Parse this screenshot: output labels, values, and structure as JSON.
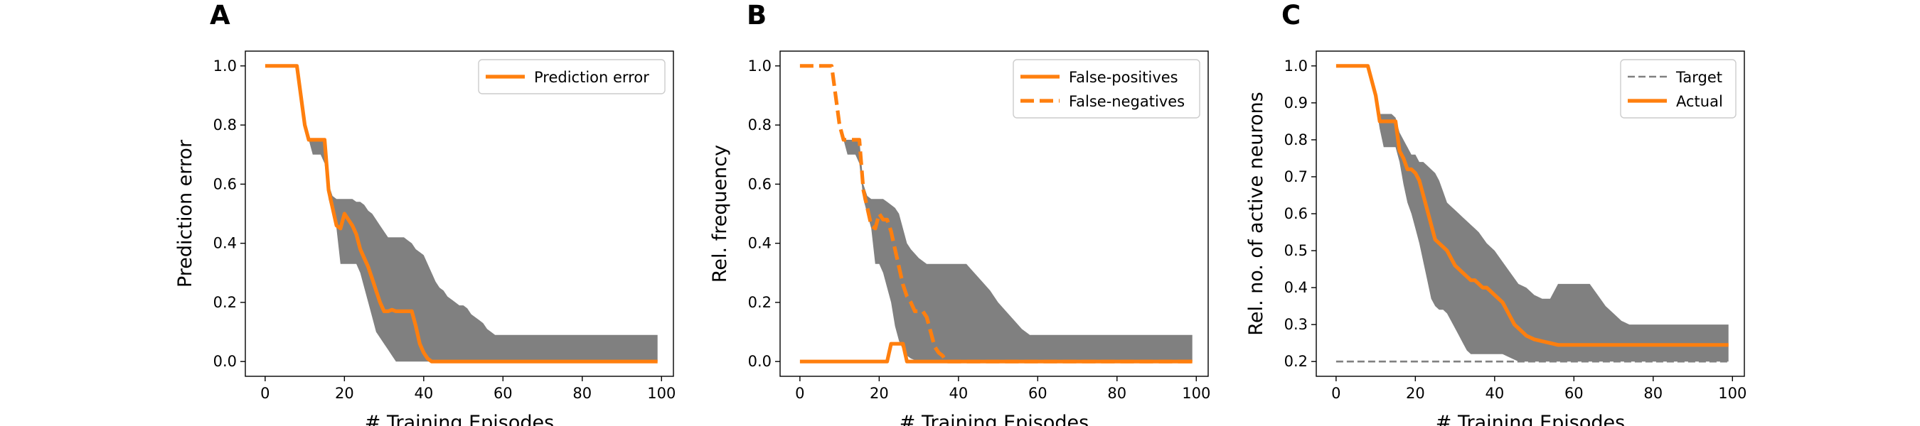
{
  "figure": {
    "x_label": "# Training Episodes"
  },
  "colors": {
    "line": "#ff7f0e",
    "band": "#808080",
    "target": "#808080",
    "frame": "#000000"
  },
  "chart_data": [
    {
      "type": "line",
      "panel_letter": "A",
      "ylabel": "Prediction error",
      "xlabel": "# Training Episodes",
      "xlim": [
        -5,
        103
      ],
      "ylim": [
        -0.05,
        1.05
      ],
      "xticks": [
        0,
        20,
        40,
        60,
        80,
        100
      ],
      "yticks": [
        0.0,
        0.2,
        0.4,
        0.6,
        0.8,
        1.0
      ],
      "ytick_labels": [
        "0.0",
        "0.2",
        "0.4",
        "0.6",
        "0.8",
        "1.0"
      ],
      "legend_position": "top-right",
      "band": {
        "x": [
          0,
          8,
          10,
          11,
          12,
          13,
          14,
          15,
          16,
          17,
          18,
          19,
          20,
          21,
          22,
          23,
          24,
          25,
          26,
          27,
          28,
          29,
          30,
          31,
          32,
          33,
          34,
          35,
          36,
          37,
          38,
          39,
          40,
          41,
          42,
          43,
          44,
          45,
          46,
          47,
          48,
          49,
          50,
          51,
          52,
          53,
          54,
          55,
          56,
          57,
          58,
          59,
          60,
          99
        ],
        "upper": [
          1,
          1,
          0.8,
          0.75,
          0.75,
          0.75,
          0.75,
          0.75,
          0.6,
          0.56,
          0.55,
          0.55,
          0.55,
          0.55,
          0.55,
          0.54,
          0.54,
          0.53,
          0.51,
          0.5,
          0.48,
          0.46,
          0.44,
          0.42,
          0.42,
          0.42,
          0.42,
          0.42,
          0.41,
          0.4,
          0.38,
          0.37,
          0.36,
          0.33,
          0.3,
          0.27,
          0.25,
          0.24,
          0.22,
          0.21,
          0.2,
          0.19,
          0.19,
          0.18,
          0.16,
          0.15,
          0.14,
          0.13,
          0.11,
          0.1,
          0.09,
          0.09,
          0.09,
          0.09
        ],
        "lower": [
          1,
          1,
          0.8,
          0.75,
          0.7,
          0.7,
          0.7,
          0.67,
          0.55,
          0.5,
          0.45,
          0.33,
          0.33,
          0.33,
          0.33,
          0.33,
          0.3,
          0.25,
          0.2,
          0.15,
          0.1,
          0.08,
          0.06,
          0.04,
          0.02,
          0.0,
          0.0,
          0.0,
          0.0,
          0.0,
          0.0,
          0.0,
          0.0,
          0.0,
          0.0,
          0.0,
          0.0,
          0.0,
          0.0,
          0.0,
          0.0,
          0.0,
          0.0,
          0.0,
          0.0,
          0.0,
          0.0,
          0.0,
          0.0,
          0.0,
          0.0,
          0.0,
          0.0,
          0.0
        ]
      },
      "series": [
        {
          "name": "Prediction error",
          "dash": "solid",
          "x": [
            0,
            8,
            10,
            11,
            12,
            13,
            14,
            15,
            16,
            17,
            18,
            19,
            20,
            21,
            22,
            23,
            24,
            25,
            26,
            27,
            28,
            29,
            30,
            31,
            32,
            33,
            34,
            35,
            36,
            37,
            38,
            39,
            40,
            41,
            42,
            43,
            44,
            99
          ],
          "y": [
            1,
            1,
            0.8,
            0.75,
            0.75,
            0.75,
            0.75,
            0.75,
            0.58,
            0.52,
            0.46,
            0.45,
            0.5,
            0.48,
            0.46,
            0.43,
            0.38,
            0.35,
            0.32,
            0.28,
            0.24,
            0.2,
            0.17,
            0.17,
            0.175,
            0.17,
            0.17,
            0.17,
            0.17,
            0.17,
            0.12,
            0.06,
            0.03,
            0.01,
            0.0,
            0.0,
            0.0,
            0.0
          ]
        }
      ]
    },
    {
      "type": "line",
      "panel_letter": "B",
      "ylabel": "Rel. frequency",
      "xlabel": "# Training Episodes",
      "xlim": [
        -5,
        103
      ],
      "ylim": [
        -0.05,
        1.05
      ],
      "xticks": [
        0,
        20,
        40,
        60,
        80,
        100
      ],
      "yticks": [
        0.0,
        0.2,
        0.4,
        0.6,
        0.8,
        1.0
      ],
      "ytick_labels": [
        "0.0",
        "0.2",
        "0.4",
        "0.6",
        "0.8",
        "1.0"
      ],
      "legend_position": "top-right",
      "band": {
        "x": [
          0,
          8,
          10,
          11,
          12,
          13,
          14,
          15,
          16,
          17,
          18,
          19,
          20,
          21,
          22,
          23,
          24,
          25,
          26,
          27,
          28,
          30,
          32,
          34,
          36,
          38,
          40,
          42,
          44,
          46,
          48,
          50,
          52,
          54,
          56,
          58,
          60,
          99
        ],
        "upper": [
          1,
          1,
          0.8,
          0.75,
          0.75,
          0.75,
          0.75,
          0.75,
          0.6,
          0.56,
          0.55,
          0.55,
          0.55,
          0.55,
          0.54,
          0.53,
          0.52,
          0.5,
          0.45,
          0.4,
          0.38,
          0.35,
          0.33,
          0.33,
          0.33,
          0.33,
          0.33,
          0.33,
          0.3,
          0.27,
          0.24,
          0.2,
          0.17,
          0.14,
          0.11,
          0.09,
          0.09,
          0.09
        ],
        "lower": [
          1,
          1,
          0.8,
          0.75,
          0.7,
          0.7,
          0.7,
          0.67,
          0.55,
          0.5,
          0.45,
          0.33,
          0.33,
          0.3,
          0.25,
          0.2,
          0.12,
          0.07,
          0.04,
          0.02,
          0.01,
          0.0,
          0.0,
          0.0,
          0.0,
          0.0,
          0.0,
          0.0,
          0.0,
          0.0,
          0.0,
          0.0,
          0.0,
          0.0,
          0.0,
          0.0,
          0.0,
          0.0
        ]
      },
      "series": [
        {
          "name": "False-positives",
          "dash": "solid",
          "x": [
            0,
            22,
            23,
            24,
            25,
            26,
            27,
            99
          ],
          "y": [
            0,
            0,
            0.06,
            0.06,
            0.06,
            0.06,
            0.0,
            0.0
          ]
        },
        {
          "name": "False-negatives",
          "dash": "dashed",
          "x": [
            0,
            8,
            10,
            11,
            12,
            13,
            14,
            15,
            16,
            17,
            18,
            19,
            20,
            21,
            22,
            23,
            24,
            25,
            26,
            27,
            28,
            29,
            30,
            31,
            32,
            33,
            34,
            35,
            36,
            37,
            99
          ],
          "y": [
            1,
            1,
            0.8,
            0.75,
            0.75,
            0.75,
            0.75,
            0.75,
            0.58,
            0.52,
            0.46,
            0.45,
            0.5,
            0.48,
            0.48,
            0.44,
            0.38,
            0.32,
            0.26,
            0.22,
            0.2,
            0.17,
            0.17,
            0.17,
            0.15,
            0.1,
            0.05,
            0.03,
            0.02,
            0.0,
            0.0
          ]
        }
      ]
    },
    {
      "type": "line",
      "panel_letter": "C",
      "ylabel": "Rel. no. of active neurons",
      "xlabel": "# Training Episodes",
      "xlim": [
        -5,
        103
      ],
      "ylim": [
        0.16,
        1.04
      ],
      "xticks": [
        0,
        20,
        40,
        60,
        80,
        100
      ],
      "yticks": [
        0.2,
        0.3,
        0.4,
        0.5,
        0.6,
        0.7,
        0.8,
        0.9,
        1.0
      ],
      "ytick_labels": [
        "0.2",
        "0.3",
        "0.4",
        "0.5",
        "0.6",
        "0.7",
        "0.8",
        "0.9",
        "1.0"
      ],
      "legend_position": "top-right",
      "band": {
        "x": [
          0,
          8,
          10,
          11,
          12,
          13,
          14,
          15,
          16,
          17,
          18,
          19,
          20,
          21,
          22,
          23,
          24,
          25,
          26,
          27,
          28,
          29,
          30,
          31,
          32,
          33,
          34,
          35,
          36,
          38,
          40,
          42,
          44,
          46,
          48,
          50,
          52,
          54,
          56,
          58,
          60,
          62,
          64,
          66,
          68,
          70,
          72,
          74,
          76,
          78,
          80,
          99
        ],
        "upper": [
          1,
          1,
          0.92,
          0.87,
          0.87,
          0.87,
          0.87,
          0.86,
          0.82,
          0.8,
          0.78,
          0.76,
          0.76,
          0.74,
          0.74,
          0.73,
          0.72,
          0.71,
          0.69,
          0.66,
          0.63,
          0.62,
          0.61,
          0.6,
          0.59,
          0.58,
          0.57,
          0.56,
          0.55,
          0.52,
          0.5,
          0.47,
          0.44,
          0.41,
          0.4,
          0.38,
          0.37,
          0.37,
          0.41,
          0.41,
          0.41,
          0.41,
          0.41,
          0.38,
          0.35,
          0.33,
          0.31,
          0.3,
          0.3,
          0.3,
          0.3,
          0.3
        ],
        "lower": [
          1,
          1,
          0.9,
          0.83,
          0.78,
          0.78,
          0.78,
          0.78,
          0.74,
          0.68,
          0.63,
          0.6,
          0.56,
          0.52,
          0.47,
          0.42,
          0.37,
          0.35,
          0.34,
          0.34,
          0.33,
          0.31,
          0.29,
          0.27,
          0.25,
          0.23,
          0.22,
          0.22,
          0.22,
          0.22,
          0.22,
          0.22,
          0.21,
          0.2,
          0.2,
          0.2,
          0.2,
          0.2,
          0.2,
          0.2,
          0.2,
          0.2,
          0.2,
          0.2,
          0.2,
          0.2,
          0.2,
          0.2,
          0.2,
          0.2,
          0.2,
          0.2
        ]
      },
      "series": [
        {
          "name": "Target",
          "dash": "dashed-thin",
          "color": "#808080",
          "x": [
            0,
            99
          ],
          "y": [
            0.2,
            0.2
          ]
        },
        {
          "name": "Actual",
          "dash": "solid",
          "x": [
            0,
            8,
            10,
            11,
            12,
            13,
            14,
            15,
            16,
            17,
            18,
            19,
            20,
            21,
            22,
            23,
            24,
            25,
            26,
            27,
            28,
            29,
            30,
            31,
            32,
            33,
            34,
            35,
            36,
            37,
            38,
            39,
            40,
            41,
            42,
            43,
            44,
            45,
            46,
            47,
            48,
            50,
            52,
            54,
            56,
            58,
            60,
            99
          ],
          "y": [
            1,
            1,
            0.92,
            0.85,
            0.85,
            0.85,
            0.85,
            0.85,
            0.77,
            0.75,
            0.72,
            0.72,
            0.71,
            0.69,
            0.65,
            0.61,
            0.57,
            0.53,
            0.52,
            0.51,
            0.5,
            0.48,
            0.46,
            0.45,
            0.44,
            0.43,
            0.42,
            0.42,
            0.41,
            0.4,
            0.4,
            0.39,
            0.38,
            0.37,
            0.36,
            0.34,
            0.32,
            0.3,
            0.29,
            0.28,
            0.27,
            0.26,
            0.255,
            0.25,
            0.245,
            0.245,
            0.245,
            0.245
          ]
        }
      ]
    }
  ]
}
